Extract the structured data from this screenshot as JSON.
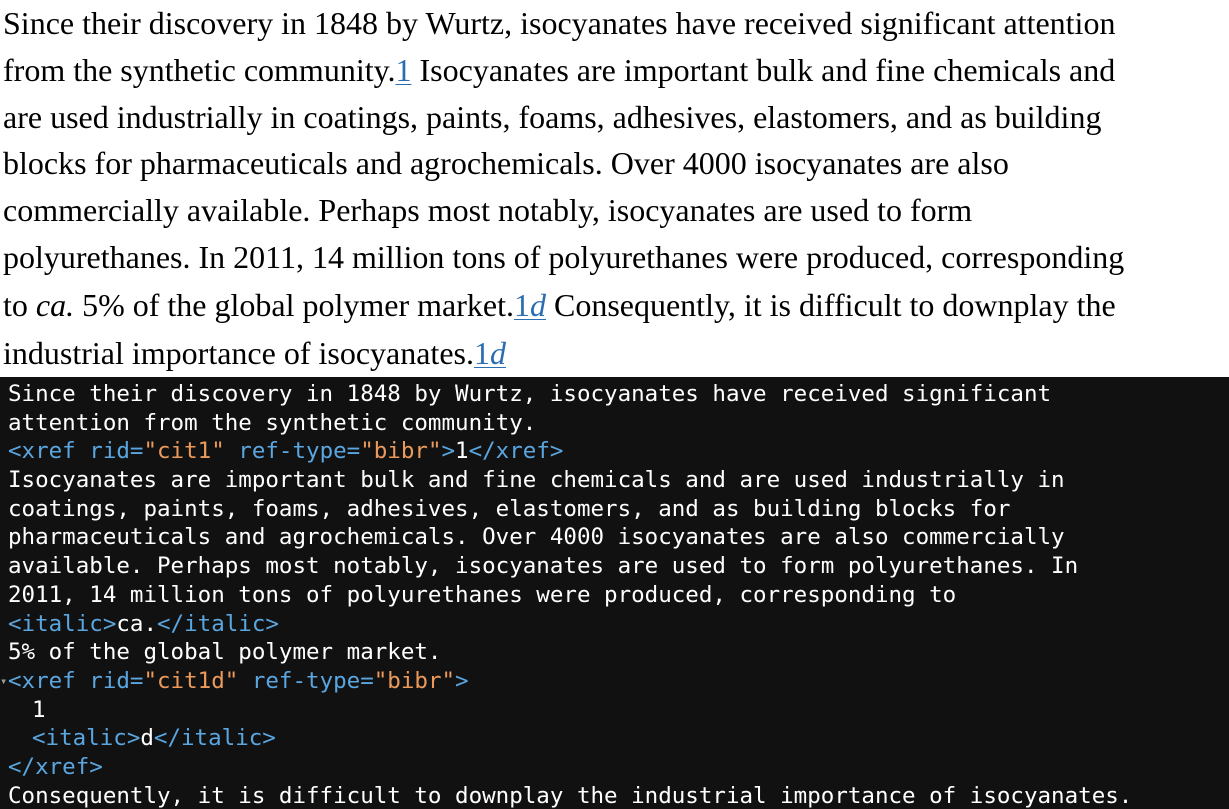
{
  "rendered": {
    "line1": "Since their discovery in 1848 by Wurtz, isocyanates have received significant attention",
    "line2_text": "from the synthetic community.",
    "line2_ref": "1",
    "line2_after": " Isocyanates are important bulk and fine chemicals and",
    "line3": "are used industrially in coatings, paints, foams, adhesives, elastomers, and as building",
    "line4": "blocks for pharmaceuticals and agrochemicals. Over 4000 isocyanates are also",
    "line5": "commercially available. Perhaps most notably, isocyanates are used to form",
    "line6": "polyurethanes. In 2011, 14 million tons of polyurethanes were produced, corresponding",
    "line7_before": "to ",
    "line7_italic": "ca.",
    "line7_mid": " 5% of the global polymer market.",
    "line7_ref_num": "1",
    "line7_ref_italic": "d",
    "line7_after": " Consequently, it is difficult to downplay the",
    "line8_text": "industrial importance of isocyanates.",
    "line8_ref_num": "1",
    "line8_ref_italic": "d"
  },
  "source": {
    "l1": "Since their discovery in 1848 by Wurtz, isocyanates have received significant",
    "l2": "attention from the synthetic community.",
    "xref1": {
      "open": "<xref",
      "rid_attr": " rid=",
      "rid_val": "\"cit1\"",
      "type_attr": " ref-type=",
      "type_val": "\"bibr\"",
      "close_bracket": ">",
      "content": "1",
      "end_tag": "</xref>"
    },
    "l4": "Isocyanates are important bulk and fine chemicals and are used industrially in",
    "l5": "coatings, paints, foams, adhesives, elastomers, and as building blocks for",
    "l6": "pharmaceuticals and agrochemicals. Over 4000 isocyanates are also commercially",
    "l7": "available. Perhaps most notably, isocyanates are used to form polyurethanes. In",
    "l8": "2011, 14 million tons of polyurethanes were produced, corresponding to",
    "italic1": {
      "open": "<italic>",
      "content": "ca.",
      "close": "</italic>"
    },
    "l10": "5% of the global polymer market.",
    "xref2": {
      "open": "<xref",
      "rid_attr": " rid=",
      "rid_val": "\"cit1d\"",
      "type_attr": " ref-type=",
      "type_val": "\"bibr\"",
      "close_bracket": ">",
      "content": "1",
      "italic_open": "<italic>",
      "italic_content": "d",
      "italic_close": "</italic>",
      "end_tag": "</xref>"
    },
    "l16": "Consequently, it is difficult to downplay the industrial importance of isocyanates.",
    "toggle_glyph": "▾"
  },
  "colors": {
    "tag": "#5aa6e0",
    "attribute_value": "#ec9a5c",
    "link": "#2a6db0",
    "code_background": "#111111"
  }
}
